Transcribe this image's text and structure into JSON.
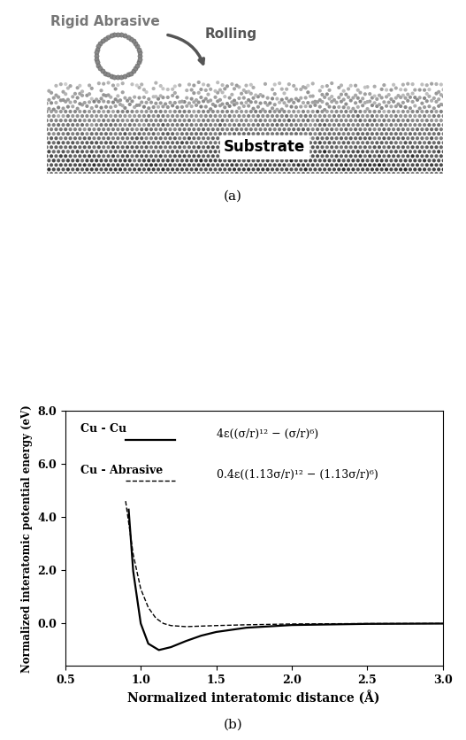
{
  "panel_a": {
    "labels": {
      "abrasive": "Rigid Abrasive",
      "motion": "Rolling",
      "substrate": "Substrate"
    },
    "caption": "(a)"
  },
  "chart_data": {
    "type": "line",
    "caption": "(b)",
    "x_label": "Normalized interatomic distance (Å)",
    "y_label": "Normalized interatomic potential energy (eV)",
    "xlim": [
      0.5,
      3.0
    ],
    "xticks": [
      0.5,
      {
        "value": 1.0,
        "label": "1.0"
      },
      1.5,
      {
        "value": 2.0,
        "label": "2.0"
      },
      2.5,
      {
        "value": 3.0,
        "label": "3.0"
      }
    ],
    "ylim": [
      -1.6,
      8.0
    ],
    "yticks": [
      {
        "value": 0.0,
        "label": "0.0"
      },
      {
        "value": 2.0,
        "label": "2.0"
      },
      {
        "value": 4.0,
        "label": "4.0"
      },
      {
        "value": 6.0,
        "label": "6.0"
      },
      {
        "value": 8.0,
        "label": "8.0"
      }
    ],
    "grid": false,
    "legend": "upper left",
    "series": [
      {
        "name": "Cu - Cu",
        "formula": "4ε((σ/r)¹² − (σ/r)⁶)",
        "color": "#000000",
        "line_style": "solid",
        "x": [
          0.92,
          0.95,
          1.0,
          1.05,
          1.12,
          1.2,
          1.3,
          1.4,
          1.5,
          1.7,
          2.0,
          2.5,
          3.0
        ],
        "values": [
          4.28,
          1.97,
          0.0,
          -0.76,
          -1.0,
          -0.89,
          -0.66,
          -0.46,
          -0.32,
          -0.16,
          -0.06,
          -0.016,
          -0.005
        ]
      },
      {
        "name": "Cu - Abrasive",
        "formula": "0.4ε((1.13σ/r)¹² − (1.13σ/r)⁶)",
        "color": "#000000",
        "line_style": "dashed",
        "x": [
          0.9,
          0.95,
          1.0,
          1.05,
          1.1,
          1.15,
          1.2,
          1.3,
          1.4,
          1.5,
          1.7,
          2.0,
          2.5,
          3.0
        ],
        "values": [
          4.6,
          2.6,
          1.3,
          0.6,
          0.2,
          0.0,
          -0.08,
          -0.12,
          -0.1,
          -0.08,
          -0.05,
          -0.02,
          -0.005,
          0.0
        ]
      }
    ]
  }
}
